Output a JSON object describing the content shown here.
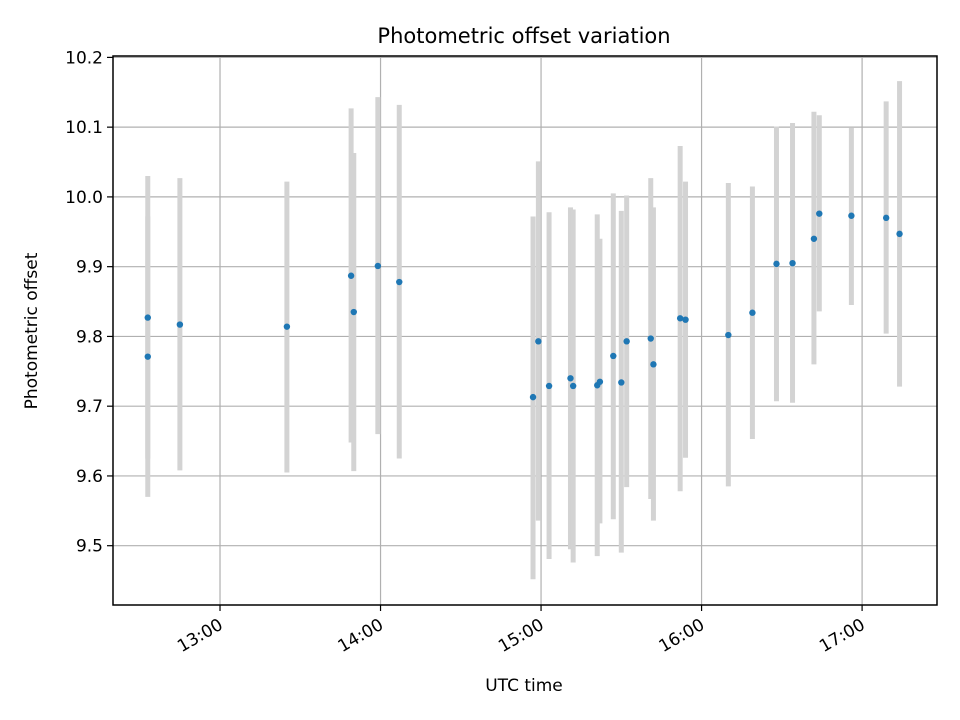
{
  "chart_data": {
    "type": "scatter",
    "title": "Photometric offset variation",
    "xlabel": "UTC time",
    "ylabel": "Photometric offset",
    "x_axis_type": "time",
    "xlim": [
      "12:20",
      "17:28"
    ],
    "ylim": [
      9.415,
      10.202
    ],
    "x_ticks": [
      "13:00",
      "14:00",
      "15:00",
      "16:00",
      "17:00"
    ],
    "y_ticks": [
      9.5,
      9.6,
      9.7,
      9.8,
      9.9,
      10.0,
      10.1,
      10.2
    ],
    "y_tick_labels": [
      "9.5",
      "9.6",
      "9.7",
      "9.8",
      "9.9",
      "10.0",
      "10.1",
      "10.2"
    ],
    "grid": true,
    "point_color": "#1f77b4",
    "errorbar_color": "#d3d3d3",
    "points": [
      {
        "x": "12:33",
        "y": 9.827,
        "yerr": [
          9.625,
          10.03
        ]
      },
      {
        "x": "12:33",
        "y": 9.771,
        "yerr": [
          9.57,
          9.972
        ]
      },
      {
        "x": "12:45",
        "y": 9.817,
        "yerr": [
          9.608,
          10.027
        ]
      },
      {
        "x": "13:25",
        "y": 9.814,
        "yerr": [
          9.605,
          10.022
        ]
      },
      {
        "x": "13:49",
        "y": 9.887,
        "yerr": [
          9.648,
          10.127
        ]
      },
      {
        "x": "13:50",
        "y": 9.835,
        "yerr": [
          9.607,
          10.063
        ]
      },
      {
        "x": "13:59",
        "y": 9.901,
        "yerr": [
          9.66,
          10.143
        ]
      },
      {
        "x": "14:07",
        "y": 9.878,
        "yerr": [
          9.625,
          10.132
        ]
      },
      {
        "x": "14:57",
        "y": 9.713,
        "yerr": [
          9.452,
          9.972
        ]
      },
      {
        "x": "14:59",
        "y": 9.793,
        "yerr": [
          9.536,
          10.051
        ]
      },
      {
        "x": "15:03",
        "y": 9.729,
        "yerr": [
          9.481,
          9.978
        ]
      },
      {
        "x": "15:11",
        "y": 9.74,
        "yerr": [
          9.495,
          9.985
        ]
      },
      {
        "x": "15:12",
        "y": 9.729,
        "yerr": [
          9.476,
          9.982
        ]
      },
      {
        "x": "15:21",
        "y": 9.73,
        "yerr": [
          9.485,
          9.975
        ]
      },
      {
        "x": "15:22",
        "y": 9.735,
        "yerr": [
          9.532,
          9.94
        ]
      },
      {
        "x": "15:27",
        "y": 9.772,
        "yerr": [
          9.538,
          10.005
        ]
      },
      {
        "x": "15:30",
        "y": 9.734,
        "yerr": [
          9.49,
          9.98
        ]
      },
      {
        "x": "15:32",
        "y": 9.793,
        "yerr": [
          9.584,
          10.002
        ]
      },
      {
        "x": "15:41",
        "y": 9.797,
        "yerr": [
          9.567,
          10.027
        ]
      },
      {
        "x": "15:42",
        "y": 9.76,
        "yerr": [
          9.536,
          9.985
        ]
      },
      {
        "x": "15:52",
        "y": 9.826,
        "yerr": [
          9.578,
          10.073
        ]
      },
      {
        "x": "15:54",
        "y": 9.824,
        "yerr": [
          9.626,
          10.022
        ]
      },
      {
        "x": "16:10",
        "y": 9.802,
        "yerr": [
          9.585,
          10.02
        ]
      },
      {
        "x": "16:19",
        "y": 9.834,
        "yerr": [
          9.653,
          10.015
        ]
      },
      {
        "x": "16:28",
        "y": 9.904,
        "yerr": [
          9.707,
          10.101
        ]
      },
      {
        "x": "16:34",
        "y": 9.905,
        "yerr": [
          9.705,
          10.106
        ]
      },
      {
        "x": "16:42",
        "y": 9.94,
        "yerr": [
          9.76,
          10.122
        ]
      },
      {
        "x": "16:44",
        "y": 9.976,
        "yerr": [
          9.836,
          10.117
        ]
      },
      {
        "x": "16:56",
        "y": 9.973,
        "yerr": [
          9.845,
          10.099
        ]
      },
      {
        "x": "17:09",
        "y": 9.97,
        "yerr": [
          9.804,
          10.137
        ]
      },
      {
        "x": "17:14",
        "y": 9.947,
        "yerr": [
          9.728,
          10.166
        ]
      }
    ]
  }
}
